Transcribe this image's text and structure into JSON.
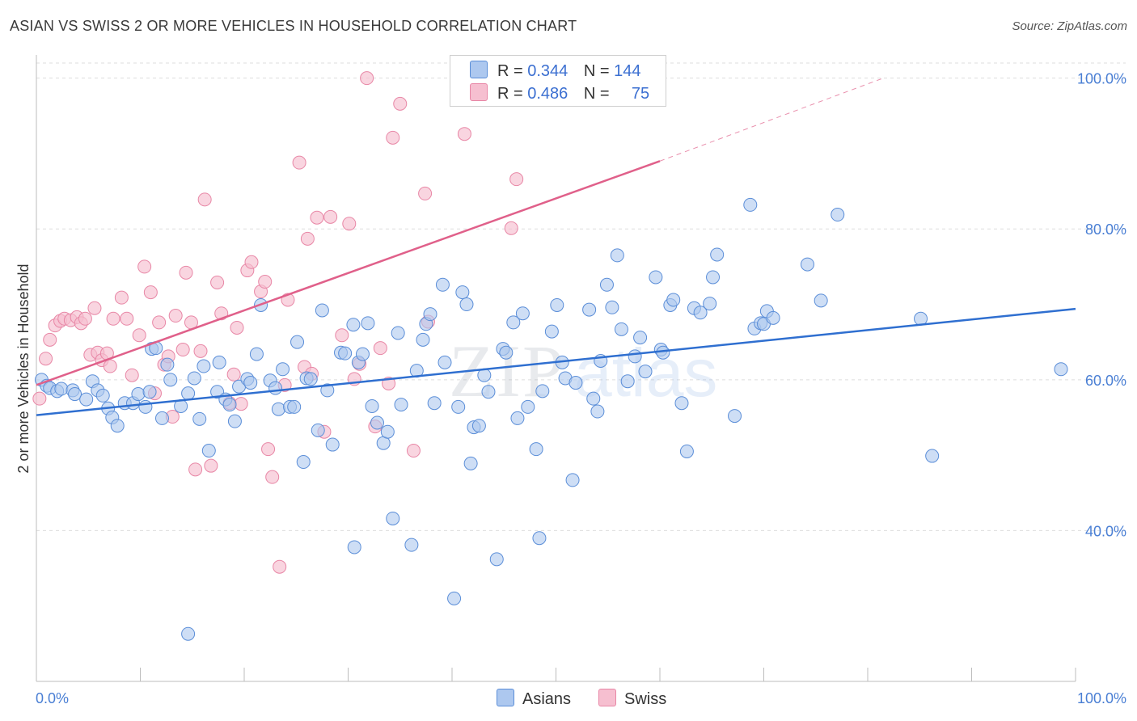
{
  "header": {
    "title": "ASIAN VS SWISS 2 OR MORE VEHICLES IN HOUSEHOLD CORRELATION CHART",
    "source": "Source: ZipAtlas.com"
  },
  "legend": {
    "rows": [
      {
        "r_label": "R =",
        "r_value": "0.344",
        "n_label": "N =",
        "n_value": "144"
      },
      {
        "r_label": "R =",
        "r_value": "0.486",
        "n_label": "N =",
        "n_value": "75"
      }
    ]
  },
  "bottom_legend": [
    "Asians",
    "Swiss"
  ],
  "watermark": {
    "zip": "ZIP",
    "atlas": "atlas"
  },
  "colors": {
    "asian_fill": "#adc8ef",
    "asian_stroke": "#5b8ed8",
    "asian_line": "#2f6fd0",
    "swiss_fill": "#f6bfd0",
    "swiss_stroke": "#e887a6",
    "swiss_line": "#e0608a",
    "axis_text": "#4a7fd4",
    "grid": "#dddddd"
  },
  "chart_data": {
    "type": "scatter",
    "title": "ASIAN VS SWISS 2 OR MORE VEHICLES IN HOUSEHOLD CORRELATION CHART",
    "xlabel": "",
    "ylabel": "2 or more Vehicles in Household",
    "xlim": [
      0,
      100
    ],
    "ylim": [
      20,
      102
    ],
    "x_tick_labels": [
      "0.0%",
      "100.0%"
    ],
    "y_ticks": [
      40,
      60,
      80,
      100
    ],
    "y_tick_labels": [
      "40.0%",
      "60.0%",
      "80.0%",
      "100.0%"
    ],
    "grid": true,
    "legend_position": "top-center",
    "series": [
      {
        "name": "Asians",
        "r": 0.344,
        "n": 144,
        "trend": {
          "x": [
            0,
            100
          ],
          "y": [
            55.3,
            69.4
          ]
        },
        "points": [
          [
            0.5,
            60
          ],
          [
            1.0,
            59.2
          ],
          [
            1.3,
            58.9
          ],
          [
            2.0,
            58.5
          ],
          [
            2.4,
            58.8
          ],
          [
            3.5,
            58.6
          ],
          [
            3.7,
            58.1
          ],
          [
            4.8,
            57.4
          ],
          [
            5.4,
            59.8
          ],
          [
            5.9,
            58.6
          ],
          [
            6.4,
            57.9
          ],
          [
            6.9,
            56.2
          ],
          [
            7.3,
            55
          ],
          [
            7.8,
            53.9
          ],
          [
            8.5,
            56.9
          ],
          [
            9.3,
            56.9
          ],
          [
            9.8,
            58.1
          ],
          [
            10.5,
            56.4
          ],
          [
            10.9,
            58.4
          ],
          [
            11.1,
            64.1
          ],
          [
            11.5,
            64.2
          ],
          [
            12.1,
            54.9
          ],
          [
            12.6,
            62
          ],
          [
            12.9,
            60
          ],
          [
            13.9,
            56.5
          ],
          [
            14.6,
            58.2
          ],
          [
            15.2,
            60.2
          ],
          [
            15.7,
            54.8
          ],
          [
            16.1,
            61.8
          ],
          [
            16.6,
            50.6
          ],
          [
            17.4,
            58.4
          ],
          [
            17.6,
            62.3
          ],
          [
            18.2,
            57.4
          ],
          [
            18.6,
            56.7
          ],
          [
            19.1,
            54.5
          ],
          [
            19.5,
            59.1
          ],
          [
            20.3,
            60.1
          ],
          [
            20.6,
            59.6
          ],
          [
            21.2,
            63.4
          ],
          [
            21.6,
            69.9
          ],
          [
            22.5,
            59.9
          ],
          [
            23.0,
            58.9
          ],
          [
            23.3,
            56.1
          ],
          [
            23.7,
            61.4
          ],
          [
            24.4,
            56.4
          ],
          [
            24.8,
            56.4
          ],
          [
            25.1,
            65
          ],
          [
            25.7,
            49.1
          ],
          [
            26.0,
            60.2
          ],
          [
            26.4,
            60.1
          ],
          [
            27.1,
            53.3
          ],
          [
            27.5,
            69.2
          ],
          [
            28.0,
            58.6
          ],
          [
            28.5,
            51.4
          ],
          [
            29.3,
            63.6
          ],
          [
            29.7,
            63.5
          ],
          [
            30.5,
            67.3
          ],
          [
            30.6,
            37.8
          ],
          [
            31.0,
            62.3
          ],
          [
            31.4,
            63.4
          ],
          [
            31.9,
            67.5
          ],
          [
            32.3,
            56.5
          ],
          [
            32.8,
            54.3
          ],
          [
            33.4,
            51.6
          ],
          [
            33.8,
            53.1
          ],
          [
            34.3,
            41.6
          ],
          [
            34.8,
            66.2
          ],
          [
            35.1,
            56.7
          ],
          [
            36.1,
            38.1
          ],
          [
            36.6,
            61.2
          ],
          [
            37.2,
            65.3
          ],
          [
            37.5,
            67.4
          ],
          [
            37.9,
            68.7
          ],
          [
            38.3,
            56.9
          ],
          [
            39.1,
            72.6
          ],
          [
            39.3,
            62.3
          ],
          [
            40.2,
            31
          ],
          [
            40.6,
            56.4
          ],
          [
            41.0,
            71.6
          ],
          [
            41.4,
            70.0
          ],
          [
            41.8,
            48.9
          ],
          [
            42.1,
            53.7
          ],
          [
            42.6,
            53.9
          ],
          [
            43.1,
            60.6
          ],
          [
            43.5,
            58.4
          ],
          [
            44.3,
            36.2
          ],
          [
            44.9,
            64.1
          ],
          [
            45.2,
            63.6
          ],
          [
            45.9,
            67.6
          ],
          [
            46.3,
            54.9
          ],
          [
            46.8,
            68.8
          ],
          [
            47.3,
            56.4
          ],
          [
            48.1,
            50.8
          ],
          [
            48.4,
            39
          ],
          [
            48.7,
            58.5
          ],
          [
            49.6,
            66.4
          ],
          [
            50.1,
            69.9
          ],
          [
            50.6,
            62.3
          ],
          [
            50.9,
            60.2
          ],
          [
            51.6,
            46.7
          ],
          [
            51.9,
            59.6
          ],
          [
            53.2,
            69.3
          ],
          [
            53.6,
            57.5
          ],
          [
            54.0,
            55.8
          ],
          [
            54.3,
            62.5
          ],
          [
            54.9,
            72.6
          ],
          [
            55.4,
            69.6
          ],
          [
            55.9,
            76.5
          ],
          [
            56.3,
            66.7
          ],
          [
            56.9,
            59.8
          ],
          [
            57.6,
            63.1
          ],
          [
            58.1,
            65.6
          ],
          [
            58.6,
            61.1
          ],
          [
            59.6,
            73.6
          ],
          [
            60.1,
            64
          ],
          [
            60.3,
            63.6
          ],
          [
            61.0,
            69.9
          ],
          [
            61.3,
            70.6
          ],
          [
            62.1,
            56.9
          ],
          [
            62.6,
            50.5
          ],
          [
            63.3,
            69.5
          ],
          [
            63.9,
            68.9
          ],
          [
            64.8,
            70.1
          ],
          [
            65.1,
            73.6
          ],
          [
            65.5,
            76.6
          ],
          [
            67.2,
            55.2
          ],
          [
            68.7,
            83.2
          ],
          [
            69.1,
            66.8
          ],
          [
            69.7,
            67.5
          ],
          [
            70.0,
            67.4
          ],
          [
            70.3,
            69.1
          ],
          [
            70.9,
            68.2
          ],
          [
            74.2,
            75.3
          ],
          [
            75.5,
            70.5
          ],
          [
            77.1,
            81.9
          ],
          [
            85.1,
            68.1
          ],
          [
            86.2,
            49.9
          ],
          [
            98.6,
            61.4
          ],
          [
            14.6,
            26.3
          ]
        ]
      },
      {
        "name": "Swiss",
        "r": 0.486,
        "n": 75,
        "trend": {
          "x": [
            0,
            60
          ],
          "y": [
            59.3,
            89.0
          ]
        },
        "trend_dashed_extension": {
          "x": [
            60,
            81.5
          ],
          "y": [
            89.0,
            100.0
          ]
        },
        "points": [
          [
            0.3,
            57.5
          ],
          [
            0.9,
            62.8
          ],
          [
            1.3,
            65.3
          ],
          [
            1.8,
            67.2
          ],
          [
            2.3,
            67.8
          ],
          [
            2.7,
            68.1
          ],
          [
            3.3,
            67.9
          ],
          [
            3.9,
            68.3
          ],
          [
            4.3,
            67.5
          ],
          [
            4.7,
            68.1
          ],
          [
            5.2,
            63.3
          ],
          [
            5.6,
            69.5
          ],
          [
            5.9,
            63.6
          ],
          [
            6.3,
            62.6
          ],
          [
            6.8,
            63.5
          ],
          [
            7.1,
            61.8
          ],
          [
            7.4,
            68.1
          ],
          [
            8.2,
            70.9
          ],
          [
            8.7,
            68.1
          ],
          [
            9.2,
            60.6
          ],
          [
            9.9,
            65.9
          ],
          [
            10.4,
            75
          ],
          [
            11.0,
            71.6
          ],
          [
            11.4,
            58.2
          ],
          [
            11.8,
            67.6
          ],
          [
            12.3,
            62
          ],
          [
            12.7,
            63.1
          ],
          [
            13.1,
            55.1
          ],
          [
            13.4,
            68.5
          ],
          [
            14.1,
            64
          ],
          [
            14.4,
            74.2
          ],
          [
            14.9,
            67.6
          ],
          [
            15.3,
            48.1
          ],
          [
            15.8,
            63.8
          ],
          [
            16.2,
            83.9
          ],
          [
            16.8,
            48.6
          ],
          [
            17.4,
            72.9
          ],
          [
            17.8,
            68.8
          ],
          [
            18.6,
            56.9
          ],
          [
            19.0,
            60.7
          ],
          [
            19.3,
            66.9
          ],
          [
            19.7,
            56.8
          ],
          [
            20.3,
            74.5
          ],
          [
            20.7,
            75.6
          ],
          [
            21.6,
            71.7
          ],
          [
            22.0,
            73
          ],
          [
            22.3,
            50.8
          ],
          [
            22.7,
            47.1
          ],
          [
            23.4,
            35.2
          ],
          [
            23.9,
            59.3
          ],
          [
            24.2,
            70.6
          ],
          [
            25.3,
            88.8
          ],
          [
            25.8,
            61.7
          ],
          [
            26.1,
            78.7
          ],
          [
            26.5,
            60.8
          ],
          [
            27.0,
            81.5
          ],
          [
            27.7,
            53.1
          ],
          [
            28.3,
            81.6
          ],
          [
            29.4,
            65.9
          ],
          [
            30.1,
            80.7
          ],
          [
            30.6,
            60.1
          ],
          [
            31.1,
            62.1
          ],
          [
            31.8,
            100
          ],
          [
            32.6,
            53.8
          ],
          [
            33.1,
            64.2
          ],
          [
            33.9,
            59.5
          ],
          [
            34.3,
            92.1
          ],
          [
            35.0,
            96.6
          ],
          [
            36.3,
            50.6
          ],
          [
            37.4,
            84.7
          ],
          [
            37.7,
            67.7
          ],
          [
            41.2,
            92.6
          ],
          [
            45.7,
            80.1
          ],
          [
            46.2,
            86.6
          ],
          [
            52.1,
            100
          ]
        ]
      }
    ]
  }
}
